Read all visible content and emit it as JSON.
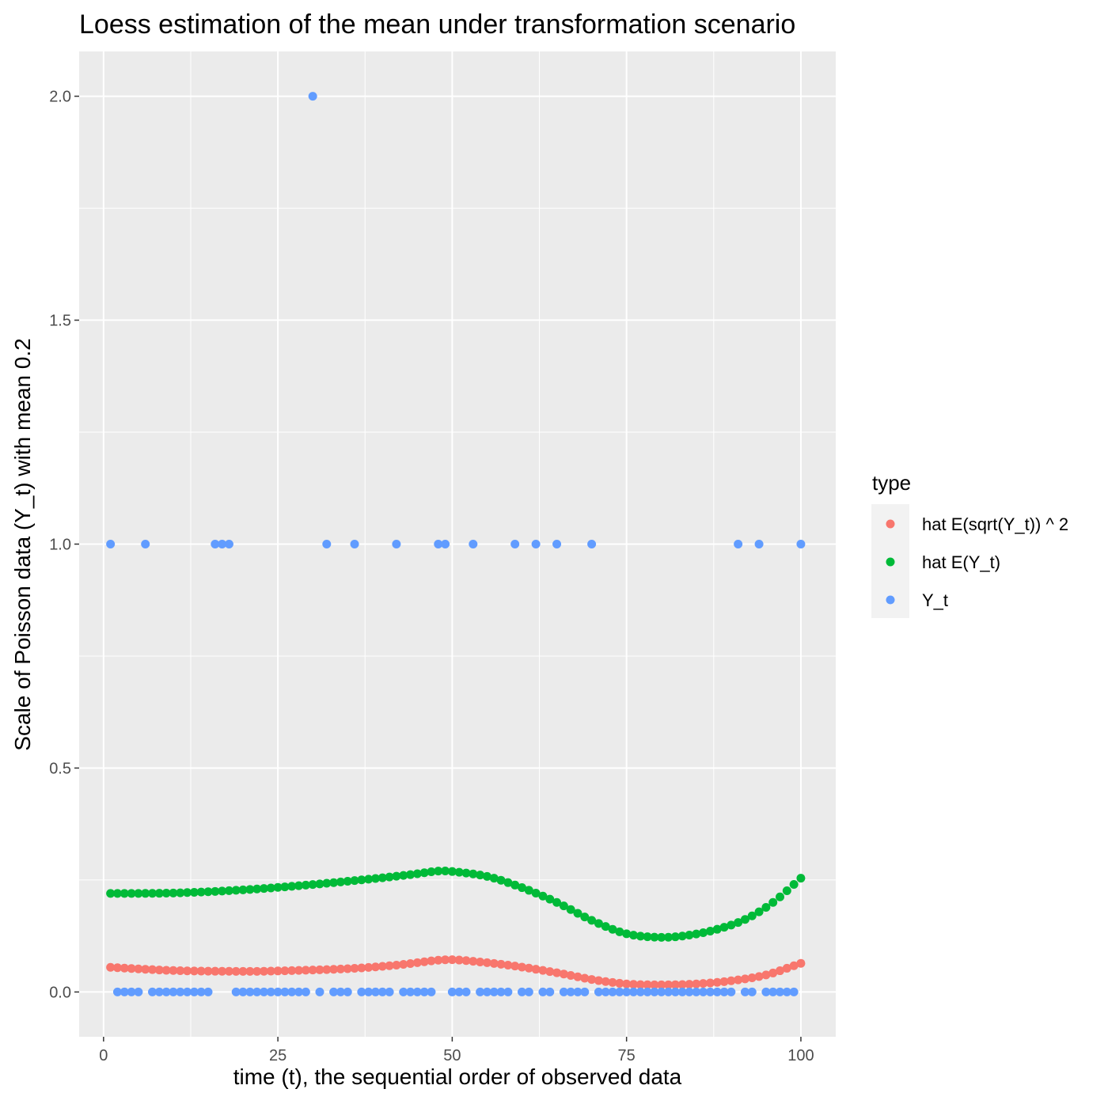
{
  "chart_data": {
    "type": "scatter",
    "title": "Loess estimation of the mean under transformation scenario",
    "xlabel": "time (t), the sequential order of observed data",
    "ylabel": "Scale of Poisson data (Y_t) with mean 0.2",
    "xlim": [
      -3.5,
      105
    ],
    "ylim": [
      -0.1,
      2.1
    ],
    "x_ticks": [
      0,
      25,
      50,
      75,
      100
    ],
    "x_tick_labels": [
      "0",
      "25",
      "50",
      "75",
      "100"
    ],
    "y_ticks": [
      0.0,
      0.5,
      1.0,
      1.5,
      2.0
    ],
    "y_tick_labels": [
      "0.0",
      "0.5",
      "1.0",
      "1.5",
      "2.0"
    ],
    "grid": true,
    "legend": {
      "title": "type",
      "position": "right",
      "entries": [
        "hat E(sqrt(Y_t)) ^ 2",
        "hat E(Y_t)",
        "Y_t"
      ]
    },
    "colors": {
      "hat_sqrt": "#f8766d",
      "hat_mean": "#00ba38",
      "y_t": "#619cff",
      "panel_bg": "#ebebeb",
      "grid": "#ffffff"
    },
    "series": [
      {
        "name": "hat E(sqrt(Y_t)) ^ 2",
        "color": "#f8766d",
        "curve_points": [
          [
            1,
            0.055
          ],
          [
            10,
            0.048
          ],
          [
            20,
            0.046
          ],
          [
            25,
            0.047
          ],
          [
            35,
            0.052
          ],
          [
            42,
            0.06
          ],
          [
            48,
            0.071
          ],
          [
            50,
            0.072
          ],
          [
            52,
            0.07
          ],
          [
            58,
            0.06
          ],
          [
            65,
            0.043
          ],
          [
            70,
            0.028
          ],
          [
            75,
            0.018
          ],
          [
            80,
            0.016
          ],
          [
            85,
            0.018
          ],
          [
            90,
            0.025
          ],
          [
            95,
            0.038
          ],
          [
            100,
            0.064
          ]
        ]
      },
      {
        "name": "hat E(Y_t)",
        "color": "#00ba38",
        "curve_points": [
          [
            1,
            0.22
          ],
          [
            10,
            0.221
          ],
          [
            20,
            0.228
          ],
          [
            30,
            0.24
          ],
          [
            40,
            0.255
          ],
          [
            45,
            0.264
          ],
          [
            48,
            0.27
          ],
          [
            50,
            0.269
          ],
          [
            55,
            0.258
          ],
          [
            60,
            0.233
          ],
          [
            65,
            0.2
          ],
          [
            70,
            0.16
          ],
          [
            75,
            0.13
          ],
          [
            80,
            0.122
          ],
          [
            84,
            0.127
          ],
          [
            88,
            0.14
          ],
          [
            92,
            0.162
          ],
          [
            96,
            0.2
          ],
          [
            100,
            0.254
          ]
        ]
      },
      {
        "name": "Y_t",
        "color": "#619cff",
        "points": [
          [
            1,
            1
          ],
          [
            2,
            0
          ],
          [
            3,
            0
          ],
          [
            4,
            0
          ],
          [
            5,
            0
          ],
          [
            6,
            1
          ],
          [
            7,
            0
          ],
          [
            8,
            0
          ],
          [
            9,
            0
          ],
          [
            10,
            0
          ],
          [
            11,
            0
          ],
          [
            12,
            0
          ],
          [
            13,
            0
          ],
          [
            14,
            0
          ],
          [
            15,
            0
          ],
          [
            16,
            1
          ],
          [
            17,
            1
          ],
          [
            18,
            1
          ],
          [
            19,
            0
          ],
          [
            20,
            0
          ],
          [
            21,
            0
          ],
          [
            22,
            0
          ],
          [
            23,
            0
          ],
          [
            24,
            0
          ],
          [
            25,
            0
          ],
          [
            26,
            0
          ],
          [
            27,
            0
          ],
          [
            28,
            0
          ],
          [
            29,
            0
          ],
          [
            30,
            2
          ],
          [
            31,
            0
          ],
          [
            32,
            1
          ],
          [
            33,
            0
          ],
          [
            34,
            0
          ],
          [
            35,
            0
          ],
          [
            36,
            1
          ],
          [
            37,
            0
          ],
          [
            38,
            0
          ],
          [
            39,
            0
          ],
          [
            40,
            0
          ],
          [
            41,
            0
          ],
          [
            42,
            1
          ],
          [
            43,
            0
          ],
          [
            44,
            0
          ],
          [
            45,
            0
          ],
          [
            46,
            0
          ],
          [
            47,
            0
          ],
          [
            48,
            1
          ],
          [
            49,
            1
          ],
          [
            50,
            0
          ],
          [
            51,
            0
          ],
          [
            52,
            0
          ],
          [
            53,
            1
          ],
          [
            54,
            0
          ],
          [
            55,
            0
          ],
          [
            56,
            0
          ],
          [
            57,
            0
          ],
          [
            58,
            0
          ],
          [
            59,
            1
          ],
          [
            60,
            0
          ],
          [
            61,
            0
          ],
          [
            62,
            1
          ],
          [
            63,
            0
          ],
          [
            64,
            0
          ],
          [
            65,
            1
          ],
          [
            66,
            0
          ],
          [
            67,
            0
          ],
          [
            68,
            0
          ],
          [
            69,
            0
          ],
          [
            70,
            1
          ],
          [
            71,
            0
          ],
          [
            72,
            0
          ],
          [
            73,
            0
          ],
          [
            74,
            0
          ],
          [
            75,
            0
          ],
          [
            76,
            0
          ],
          [
            77,
            0
          ],
          [
            78,
            0
          ],
          [
            79,
            0
          ],
          [
            80,
            0
          ],
          [
            81,
            0
          ],
          [
            82,
            0
          ],
          [
            83,
            0
          ],
          [
            84,
            0
          ],
          [
            85,
            0
          ],
          [
            86,
            0
          ],
          [
            87,
            0
          ],
          [
            88,
            0
          ],
          [
            89,
            0
          ],
          [
            90,
            0
          ],
          [
            91,
            1
          ],
          [
            92,
            0
          ],
          [
            93,
            0
          ],
          [
            94,
            1
          ],
          [
            95,
            0
          ],
          [
            96,
            0
          ],
          [
            97,
            0
          ],
          [
            98,
            0
          ],
          [
            99,
            0
          ],
          [
            100,
            1
          ]
        ]
      }
    ]
  }
}
